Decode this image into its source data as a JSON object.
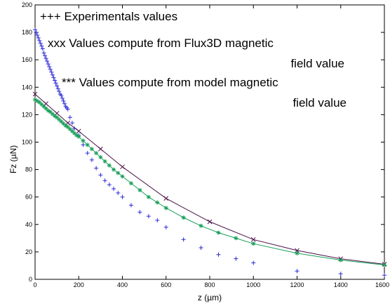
{
  "chart_data": {
    "type": "scatter",
    "title": "",
    "xlabel": "z (µm)",
    "ylabel": "Fz (µN)",
    "xlim": [
      0,
      1600
    ],
    "ylim": [
      0,
      200
    ],
    "xticks": [
      0,
      200,
      400,
      600,
      800,
      1000,
      1200,
      1400,
      1600
    ],
    "yticks": [
      0,
      20,
      40,
      60,
      80,
      100,
      120,
      140,
      160,
      180,
      200
    ],
    "grid": false,
    "legend": "none",
    "annotations": [
      "+++ Experimentals values",
      "xxx Values compute from Flux3D magnetic",
      "field value",
      "***  Values compute from model magnetic",
      "field value"
    ],
    "series": [
      {
        "marker": "+",
        "color": "#2b2bd6",
        "line": false,
        "x": [
          0,
          5,
          10,
          15,
          20,
          25,
          30,
          35,
          40,
          45,
          50,
          55,
          60,
          65,
          70,
          75,
          80,
          85,
          90,
          95,
          100,
          105,
          110,
          115,
          120,
          125,
          130,
          135,
          140,
          145,
          150,
          160,
          170,
          180,
          200,
          220,
          240,
          260,
          280,
          300,
          320,
          340,
          360,
          380,
          400,
          440,
          480,
          520,
          560,
          600,
          680,
          760,
          840,
          920,
          1000,
          1200,
          1400,
          1600
        ],
        "y": [
          182,
          180,
          178,
          176,
          174,
          172,
          170,
          168,
          165,
          163,
          161,
          159,
          157,
          155,
          153,
          151,
          149,
          147,
          145,
          143,
          141,
          139,
          137,
          135,
          134,
          132,
          130,
          128,
          126,
          125,
          124,
          118,
          114,
          110,
          105,
          98,
          92,
          87,
          81,
          76,
          72,
          69,
          66,
          63,
          60,
          54,
          49,
          46,
          43,
          38,
          29,
          23,
          18,
          15,
          12,
          6,
          4,
          3
        ]
      },
      {
        "marker": "x",
        "color": "#4a1048",
        "line": true,
        "x": [
          0,
          50,
          100,
          150,
          200,
          300,
          400,
          600,
          800,
          1000,
          1200,
          1400,
          1600
        ],
        "y": [
          135,
          128,
          121,
          114,
          108,
          95,
          82,
          59,
          42,
          29,
          21,
          15,
          11
        ]
      },
      {
        "marker": "*",
        "color": "#1aa05a",
        "line": true,
        "x": [
          0,
          10,
          20,
          30,
          40,
          50,
          60,
          70,
          80,
          90,
          100,
          110,
          120,
          130,
          140,
          150,
          160,
          170,
          180,
          190,
          200,
          220,
          240,
          260,
          280,
          300,
          320,
          340,
          360,
          380,
          400,
          440,
          480,
          520,
          560,
          600,
          680,
          760,
          840,
          920,
          1000,
          1200,
          1400,
          1600
        ],
        "y": [
          131,
          130,
          129,
          127.5,
          126,
          124.5,
          123,
          122,
          120.5,
          119,
          118,
          116.5,
          115,
          113.5,
          112,
          111,
          109.5,
          108,
          106.5,
          105,
          104,
          101,
          98,
          95,
          92,
          89,
          86,
          83,
          80,
          77.5,
          75,
          70,
          65,
          60,
          56,
          52,
          45,
          39,
          34,
          30,
          26,
          19,
          14,
          10.5
        ]
      }
    ]
  }
}
